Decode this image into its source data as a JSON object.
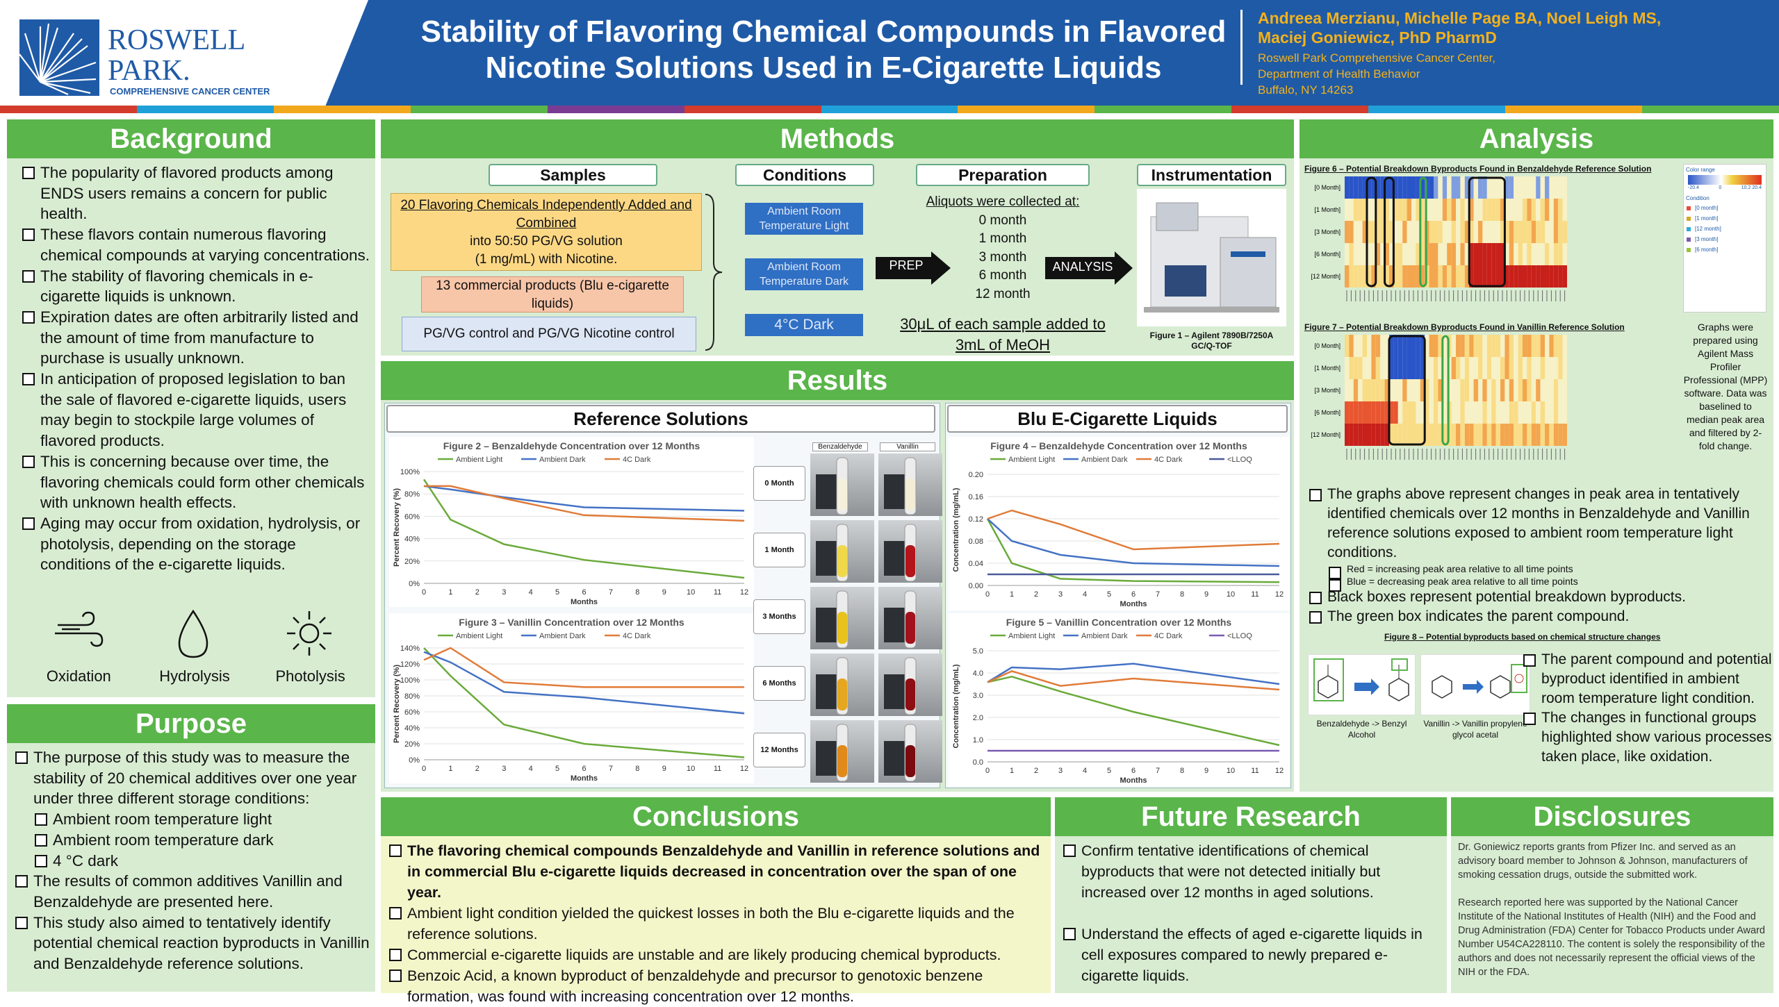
{
  "header": {
    "logo_line1": "ROSWELL",
    "logo_line2": "PARK.",
    "logo_line3": "COMPREHENSIVE CANCER CENTER",
    "title_line1": "Stability of Flavoring Chemical Compounds in Flavored",
    "title_line2": "Nicotine Solutions Used in E-Cigarette Liquids",
    "authors_line1": "Andreea Merzianu, Michelle Page BA, Noel Leigh MS,",
    "authors_line2": "Maciej Goniewicz, PhD PharmD",
    "affil1": "Roswell Park Comprehensive Cancer Center,",
    "affil2": "Department of Health Behavior",
    "affil3": "Buffalo, NY 14263",
    "stripe_colors": [
      "#d33b2c",
      "#1fa0d8",
      "#f2a81d",
      "#5ab54a",
      "#7a3c93",
      "#d33b2c",
      "#1fa0d8",
      "#f2a81d",
      "#5ab54a",
      "#d33b2c",
      "#1fa0d8",
      "#f2a81d",
      "#5ab54a"
    ]
  },
  "background": {
    "title": "Background",
    "bullets": [
      "The popularity of flavored products among ENDS users remains a concern for public health.",
      "These flavors contain numerous flavoring chemical compounds at varying concentrations.",
      "The stability of flavoring chemicals in e-cigarette liquids is unknown.",
      "Expiration dates are often arbitrarily listed and the amount of time from manufacture to purchase is usually unknown.",
      "In anticipation of proposed legislation to ban the sale of flavored e-cigarette liquids, users may begin to stockpile large volumes of flavored products.",
      "This is concerning because over time, the flavoring chemicals could form other chemicals with unknown health effects.",
      "Aging may occur from oxidation, hydrolysis, or photolysis, depending on the storage conditions of the e-cigarette liquids."
    ],
    "icons": [
      {
        "icon": "wind-icon",
        "label": "Oxidation"
      },
      {
        "icon": "droplet-icon",
        "label": "Hydrolysis"
      },
      {
        "icon": "sun-icon",
        "label": "Photolysis"
      }
    ]
  },
  "purpose": {
    "title": "Purpose",
    "bullets": [
      {
        "text": "The purpose of this study was to measure the stability of 20 chemical additives over one year under three different storage conditions:",
        "sub": false
      },
      {
        "text": "Ambient room temperature light",
        "sub": true
      },
      {
        "text": "Ambient room temperature dark",
        "sub": true
      },
      {
        "text": "4 °C dark",
        "sub": true
      },
      {
        "text": "The results of common additives Vanillin and Benzaldehyde are presented here.",
        "sub": false
      },
      {
        "text": "This study also aimed to tentatively identify potential chemical reaction byproducts in Vanillin and Benzaldehyde reference solutions.",
        "sub": false
      }
    ]
  },
  "methods": {
    "title": "Methods",
    "samples_head": "Samples",
    "conditions_head": "Conditions",
    "preparation_head": "Preparation",
    "instrumentation_head": "Instrumentation",
    "sample1_line1": "20 Flavoring Chemicals Independently Added and Combined",
    "sample1_line2": "into 50:50 PG/VG solution",
    "sample1_line3": "(1 mg/mL) with Nicotine.",
    "sample2": "13 commercial products (Blu e-cigarette liquids)",
    "sample3": "PG/VG control and PG/VG Nicotine control",
    "cond1": "Ambient Room Temperature Light",
    "cond2": "Ambient Room Temperature Dark",
    "cond3": "4°C Dark",
    "prep_arrow": "PREP",
    "analysis_arrow": "ANALYSIS",
    "aliquot_head": "Aliquots were collected at:",
    "aliquot_times": [
      "0 month",
      "1 month",
      "3 month",
      "6 month",
      "12 month"
    ],
    "sample_note": "30μL of each sample added to 3mL of MeOH",
    "fig1_caption": "Figure 1 – Agilent 7890B/7250A GC/Q-TOF"
  },
  "results": {
    "title": "Results",
    "ref_title": "Reference Solutions",
    "blu_title": "Blu E-Cigarette Liquids",
    "photo_col1": "Benzaldehyde",
    "photo_col2": "Vanillin",
    "photo_rows": [
      "0 Month",
      "1 Month",
      "3 Months",
      "6 Months",
      "12 Months"
    ]
  },
  "chart_data": [
    {
      "type": "line",
      "title": "Figure 2 – Benzaldehyde Concentration over 12 Months",
      "xlabel": "Months",
      "ylabel": "Percent Recovery (%)",
      "x": [
        0,
        1,
        3,
        6,
        12
      ],
      "xticks": [
        0,
        1,
        2,
        3,
        4,
        5,
        6,
        7,
        8,
        9,
        10,
        11,
        12
      ],
      "yticks": [
        "0%",
        "20%",
        "40%",
        "60%",
        "80%",
        "100%"
      ],
      "ylim": [
        0,
        100
      ],
      "series": [
        {
          "name": "Ambient Light",
          "color": "#6aaa3a",
          "values": [
            93,
            57,
            35,
            21,
            5
          ]
        },
        {
          "name": "Ambient Dark",
          "color": "#4472c4",
          "values": [
            87,
            84,
            77,
            68,
            65
          ]
        },
        {
          "name": "4C Dark",
          "color": "#e07b39",
          "values": [
            87,
            87,
            76,
            61,
            56
          ]
        }
      ]
    },
    {
      "type": "line",
      "title": "Figure 3 – Vanillin Concentration over 12 Months",
      "xlabel": "Months",
      "ylabel": "Percent Recovery (%)",
      "x": [
        0,
        1,
        3,
        6,
        12
      ],
      "xticks": [
        0,
        1,
        2,
        3,
        4,
        5,
        6,
        7,
        8,
        9,
        10,
        11,
        12
      ],
      "yticks": [
        "0%",
        "20%",
        "40%",
        "60%",
        "80%",
        "100%",
        "120%",
        "140%"
      ],
      "ylim": [
        0,
        140
      ],
      "series": [
        {
          "name": "Ambient Light",
          "color": "#6aaa3a",
          "values": [
            140,
            105,
            44,
            20,
            3
          ]
        },
        {
          "name": "Ambient Dark",
          "color": "#4472c4",
          "values": [
            135,
            122,
            85,
            78,
            58
          ]
        },
        {
          "name": "4C Dark",
          "color": "#e07b39",
          "values": [
            125,
            140,
            97,
            91,
            91
          ]
        }
      ]
    },
    {
      "type": "line",
      "title": "Figure 4 – Benzaldehyde Concentration over 12 Months",
      "xlabel": "Months",
      "ylabel": "Concentration (mg/mL)",
      "x": [
        0,
        1,
        3,
        6,
        12
      ],
      "xticks": [
        0,
        1,
        2,
        3,
        4,
        5,
        6,
        7,
        8,
        9,
        10,
        11,
        12
      ],
      "yticks": [
        "0.00",
        "0.04",
        "0.08",
        "0.12",
        "0.16",
        "0.20"
      ],
      "ylim": [
        0,
        0.2
      ],
      "series": [
        {
          "name": "Ambient Light",
          "color": "#6aaa3a",
          "values": [
            0.12,
            0.04,
            0.012,
            0.008,
            0.006
          ]
        },
        {
          "name": "Ambient Dark",
          "color": "#4472c4",
          "values": [
            0.12,
            0.08,
            0.055,
            0.04,
            0.035
          ]
        },
        {
          "name": "4C Dark",
          "color": "#e07b39",
          "values": [
            0.12,
            0.135,
            0.11,
            0.065,
            0.075
          ]
        },
        {
          "name": "<LLOQ",
          "color": "#4a5a9a",
          "values": [
            0.02,
            0.02,
            0.02,
            0.02,
            0.02
          ]
        }
      ]
    },
    {
      "type": "line",
      "title": "Figure 5 – Vanillin Concentration over 12 Months",
      "xlabel": "Months",
      "ylabel": "Concentration (mg/mL)",
      "x": [
        0,
        1,
        3,
        6,
        12
      ],
      "xticks": [
        0,
        1,
        2,
        3,
        4,
        5,
        6,
        7,
        8,
        9,
        10,
        11,
        12
      ],
      "yticks": [
        "0.0",
        "1.0",
        "2.0",
        "3.0",
        "4.0",
        "5.0"
      ],
      "ylim": [
        0,
        6
      ],
      "series": [
        {
          "name": "Ambient Light",
          "color": "#6aaa3a",
          "values": [
            4.3,
            4.6,
            3.8,
            2.7,
            0.9
          ]
        },
        {
          "name": "Ambient Dark",
          "color": "#4472c4",
          "values": [
            4.3,
            5.1,
            5.0,
            5.3,
            4.2
          ]
        },
        {
          "name": "4C Dark",
          "color": "#e07b39",
          "values": [
            4.3,
            4.9,
            4.1,
            4.5,
            3.9
          ]
        },
        {
          "name": "<LLOQ",
          "color": "#7a5ab0",
          "values": [
            0.6,
            0.6,
            0.6,
            0.6,
            0.6
          ]
        }
      ]
    }
  ],
  "analysis": {
    "title": "Analysis",
    "fig6_title": "Figure 6 – Potential Breakdown Byproducts Found in Benzaldehyde Reference Solution",
    "fig7_title": "Figure 7 – Potential Breakdown Byproducts Found in Vanillin Reference Solution",
    "row_labels": [
      "[0 Month]",
      "[1 Month]",
      "[3 Month]",
      "[6 Month]",
      "[12 Month]"
    ],
    "color_range_label": "Color range",
    "color_range_ticks": [
      "-20.4",
      "0",
      "10.2  20.4"
    ],
    "condition_label": "Condition",
    "condition_items": [
      "[0 month]",
      "[1 month]",
      "[12 month]",
      "[3 month]",
      "[6 month]"
    ],
    "condition_colors": [
      "#e84a3a",
      "#d9a623",
      "#2fa8d8",
      "#7a5ab0",
      "#9ac23c"
    ],
    "side_note": "Graphs were prepared using Agilent Mass Profiler Professional (MPP) software. Data was baselined to median peak area and filtered by 2-fold change.",
    "bullets": [
      {
        "text": "The graphs above represent changes in peak area in tentatively identified chemicals over 12 months in Benzaldehyde and Vanillin reference solutions exposed to ambient room temperature light conditions.",
        "sub": false
      },
      {
        "text": "Red = increasing peak area relative to all time points",
        "sub": true
      },
      {
        "text": "Blue = decreasing peak area relative to all time points",
        "sub": true
      },
      {
        "text": "Black boxes represent potential breakdown byproducts.",
        "sub": false
      },
      {
        "text": "The green box indicates the parent compound.",
        "sub": false
      }
    ],
    "fig8_title": "Figure 8 – Potential byproducts based on chemical structure changes",
    "fig8_cap1": "Benzaldehyde -> Benzyl Alcohol",
    "fig8_cap2": "Vanillin -> Vanillin propylene glycol acetal",
    "fig8_bullets": [
      "The parent compound and potential byproduct identified in ambient room temperature light condition.",
      "The changes in functional groups highlighted show various processes taken place, like oxidation."
    ]
  },
  "conclusions": {
    "title": "Conclusions",
    "bullets": [
      "The flavoring chemical compounds Benzaldehyde and Vanillin in reference solutions and in commercial Blu e-cigarette liquids decreased in concentration over the span of one year.",
      "Ambient light condition yielded the quickest losses in both the Blu e-cigarette liquids and the reference solutions.",
      "Commercial e-cigarette liquids are unstable and are likely producing chemical byproducts.",
      "Benzoic Acid, a known byproduct of benzaldehyde and precursor to genotoxic benzene formation, was found with increasing concentration over 12 months."
    ]
  },
  "future": {
    "title": "Future Research",
    "bullets": [
      "Confirm tentative identifications of chemical byproducts that were not detected initially but increased over 12 months in aged solutions.",
      "Understand the effects of aged e-cigarette liquids in cell exposures compared to newly prepared e-cigarette liquids."
    ]
  },
  "disclosures": {
    "title": "Disclosures",
    "para1": "Dr. Goniewicz reports grants from Pfizer Inc. and served as an advisory board member to Johnson & Johnson, manufacturers of smoking cessation drugs, outside the submitted work.",
    "para2": "Research reported here was supported by the National Cancer Institute of the National Institutes of Health (NIH) and the Food and Drug Administration (FDA) Center for Tobacco Products under Award Number U54CA228110. The content is solely the responsibility of the authors and does not necessarily represent the official views of the NIH or the FDA."
  }
}
